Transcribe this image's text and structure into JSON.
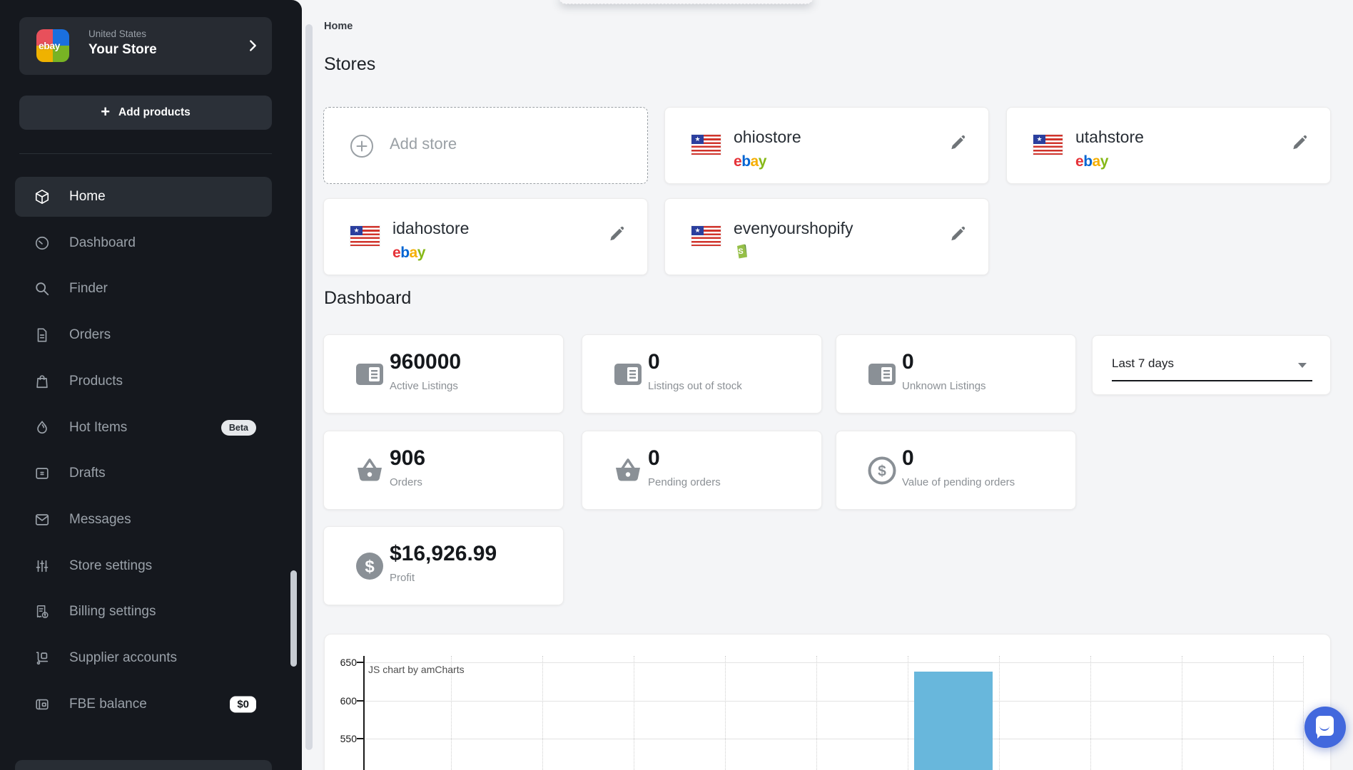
{
  "sidebar": {
    "header": {
      "country": "United States",
      "store_name": "Your Store",
      "logo_text": "ebay"
    },
    "add_products_label": "Add products",
    "items": [
      {
        "label": "Home",
        "icon": "home-cube-icon",
        "active": true
      },
      {
        "label": "Dashboard",
        "icon": "dashboard-gauge-icon"
      },
      {
        "label": "Finder",
        "icon": "search-icon"
      },
      {
        "label": "Orders",
        "icon": "orders-document-icon"
      },
      {
        "label": "Products",
        "icon": "products-bag-icon"
      },
      {
        "label": "Hot Items",
        "icon": "flame-icon",
        "badge": "Beta"
      },
      {
        "label": "Drafts",
        "icon": "drafts-card-icon"
      },
      {
        "label": "Messages",
        "icon": "envelope-icon"
      },
      {
        "label": "Store settings",
        "icon": "sliders-icon"
      },
      {
        "label": "Billing settings",
        "icon": "billing-receipt-icon"
      },
      {
        "label": "Supplier accounts",
        "icon": "supplier-cart-icon"
      },
      {
        "label": "FBE balance",
        "icon": "wallet-icon",
        "badge": "$0"
      }
    ]
  },
  "main": {
    "breadcrumb": "Home",
    "stores": {
      "title": "Stores",
      "add_store_label": "Add store",
      "cards": [
        {
          "name": "ohiostore",
          "platform": "ebay"
        },
        {
          "name": "utahstore",
          "platform": "ebay"
        },
        {
          "name": "idahostore",
          "platform": "ebay"
        },
        {
          "name": "evenyourshopify",
          "platform": "shopify"
        }
      ]
    },
    "dashboard": {
      "title": "Dashboard",
      "period_select": {
        "value": "Last 7 days"
      },
      "stats": [
        {
          "value": "960000",
          "label": "Active Listings",
          "icon": "listings-icon"
        },
        {
          "value": "0",
          "label": "Listings out of stock",
          "icon": "listings-icon"
        },
        {
          "value": "0",
          "label": "Unknown Listings",
          "icon": "listings-icon"
        },
        {
          "value": "906",
          "label": "Orders",
          "icon": "basket-icon"
        },
        {
          "value": "0",
          "label": "Pending orders",
          "icon": "basket-icon"
        },
        {
          "value": "0",
          "label": "Value of pending orders",
          "icon": "dollar-circle-icon"
        },
        {
          "value": "$16,926.99",
          "label": "Profit",
          "icon": "dollar-circle-filled-icon"
        }
      ]
    }
  },
  "chart_data": {
    "type": "bar",
    "title": "",
    "watermark": "JS chart by amCharts",
    "y_ticks": [
      650,
      600,
      550
    ],
    "x_tick_labels_visible": false,
    "grid": {
      "horizontal": "solid",
      "vertical": "dotted"
    },
    "bar_color": "#68b7dc",
    "bars": [
      {
        "x_slot": 6,
        "top_value": 638,
        "note": "single visible bar, cut off at bottom of viewport"
      }
    ]
  },
  "colors": {
    "sidebar_bg": "#15181e",
    "main_bg": "#f4f5f7",
    "chart_bar_blue": "#68b7dc",
    "chat_blue": "#4268dd",
    "ebay": {
      "e": "#e53238",
      "b": "#0064d2",
      "a": "#f5af02",
      "y": "#86b817"
    },
    "shopify_green": "#95bf47"
  }
}
